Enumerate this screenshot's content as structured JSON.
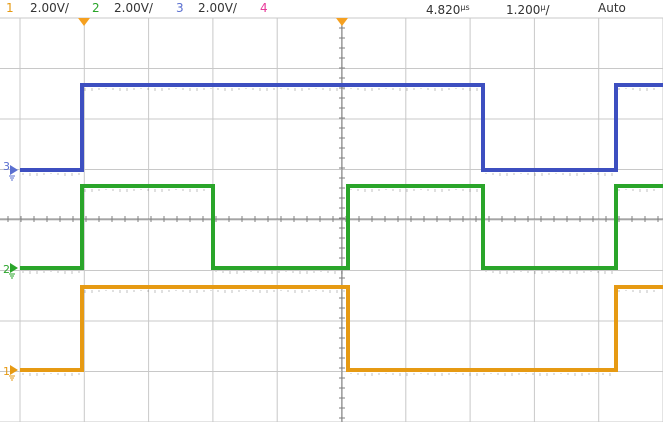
{
  "header": {
    "channels": [
      {
        "num": "1",
        "scale": "2.00V/",
        "color": "#e69a13"
      },
      {
        "num": "2",
        "scale": "2.00V/",
        "color": "#2aa52a"
      },
      {
        "num": "3",
        "scale": "2.00V/",
        "color": "#5a6fd0"
      },
      {
        "num": "4",
        "scale": "",
        "color": "#e83a9a"
      }
    ],
    "timebase_value": "4.820",
    "timebase_unit": "s",
    "timebase_prefix": "μ",
    "time_div_value": "1.200",
    "time_div_unit": "/",
    "time_div_prefix": "μ",
    "trigger_mode": "Auto"
  },
  "colors": {
    "ch1": "#e69a13",
    "ch2": "#2aa52a",
    "ch3": "#3d4fc0",
    "grid": "#c8c8c8",
    "grid_mid": "#808080",
    "trigger_marker": "#f5a020"
  },
  "ground_markers": [
    {
      "label": "3",
      "channel": "ch3"
    },
    {
      "label": "2",
      "channel": "ch2"
    },
    {
      "label": "1",
      "channel": "ch1"
    }
  ],
  "waveforms": {
    "ch3": {
      "low": 0,
      "high": 4.0,
      "edges": [
        {
          "t": 0.5,
          "to": "high"
        },
        {
          "t": 3.0,
          "to": "low"
        },
        {
          "t": 5.0,
          "to": "high"
        }
      ]
    },
    "ch2": {
      "low": 0,
      "high": 4.0,
      "edges": [
        {
          "t": 0.5,
          "to": "high"
        },
        {
          "t": 1.5,
          "to": "low"
        },
        {
          "t": 2.5,
          "to": "high"
        },
        {
          "t": 3.5,
          "to": "low"
        },
        {
          "t": 4.5,
          "to": "high"
        }
      ]
    },
    "ch1": {
      "low": 0,
      "high": 4.0,
      "edges": [
        {
          "t": 0.5,
          "to": "high"
        },
        {
          "t": 2.5,
          "to": "low"
        },
        {
          "t": 4.5,
          "to": "high"
        }
      ]
    }
  }
}
